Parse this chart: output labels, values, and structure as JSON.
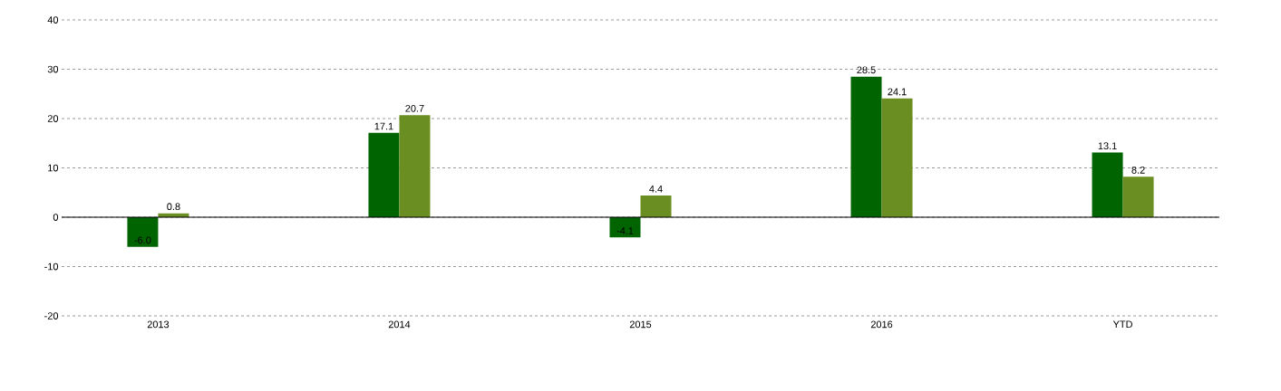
{
  "chart_data": {
    "type": "bar",
    "categories": [
      "2013",
      "2014",
      "2015",
      "2016",
      "YTD"
    ],
    "series": [
      {
        "color": "#006400",
        "values": [
          -6.0,
          17.1,
          -4.1,
          28.5,
          13.1
        ],
        "value_labels": [
          "-6.0",
          "17.1",
          "-4.1",
          "28.5",
          "13.1"
        ]
      },
      {
        "color": "#6b8e23",
        "values": [
          0.8,
          20.7,
          4.4,
          24.1,
          8.2
        ],
        "value_labels": [
          "0.8",
          "20.7",
          "4.4",
          "24.1",
          "8.2"
        ]
      }
    ],
    "ylim": [
      -20,
      40
    ],
    "yticks": [
      -20,
      -10,
      0,
      10,
      20,
      30,
      40
    ],
    "grid": "y"
  }
}
